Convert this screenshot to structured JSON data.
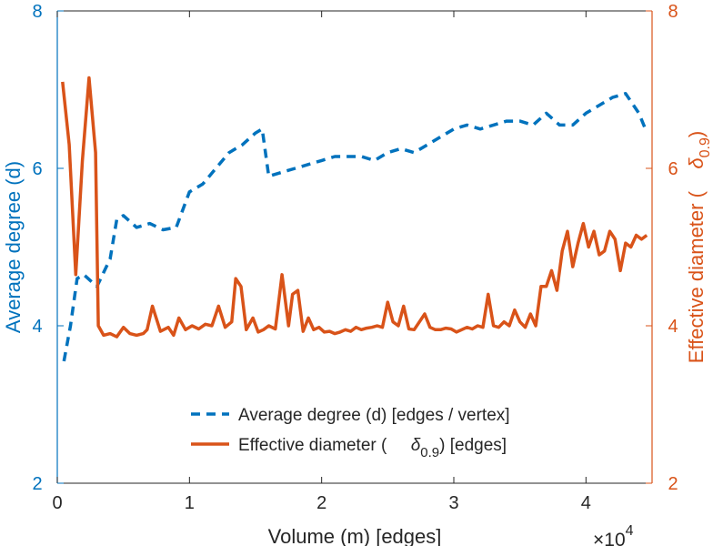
{
  "chart_data": {
    "type": "line",
    "xlabel": "Volume (m) [edges]",
    "x_exponent_base": "×10",
    "x_exponent_power": "4",
    "ylabel_left": "Average degree (d)",
    "ylabel_right_prefix": "Effective diameter (",
    "ylabel_right_symbol": "δ",
    "ylabel_right_subscript": "0.9",
    "ylabel_right_suffix": ")",
    "xlim": [
      0,
      4.5
    ],
    "xticks": [
      0,
      1,
      2,
      3,
      4
    ],
    "xtick_labels": [
      "0",
      "1",
      "2",
      "3",
      "4"
    ],
    "ylim_left": [
      2,
      8
    ],
    "yticks_left": [
      2,
      4,
      6,
      8
    ],
    "ytick_labels_left": [
      "2",
      "4",
      "6",
      "8"
    ],
    "ylim_right": [
      2,
      8
    ],
    "yticks_right": [
      2,
      4,
      6,
      8
    ],
    "ytick_labels_right": [
      "2",
      "4",
      "6",
      "8"
    ],
    "grid": false,
    "legend_position": "bottom-center",
    "colors": {
      "left": "#0072BD",
      "right": "#D95319",
      "axis": "#262626"
    },
    "series": [
      {
        "name": "Average degree (d) [edges / vertex]",
        "legend_prefix": "Average degree (d) [edges / vertex]",
        "axis": "left",
        "style": "dashed",
        "color": "#0072BD",
        "x": [
          0.05,
          0.1,
          0.15,
          0.2,
          0.3,
          0.4,
          0.45,
          0.5,
          0.6,
          0.7,
          0.8,
          0.9,
          1.0,
          1.1,
          1.2,
          1.3,
          1.4,
          1.5,
          1.55,
          1.6,
          1.7,
          1.8,
          1.9,
          2.0,
          2.1,
          2.2,
          2.3,
          2.4,
          2.5,
          2.6,
          2.7,
          2.8,
          2.9,
          3.0,
          3.1,
          3.2,
          3.3,
          3.4,
          3.5,
          3.6,
          3.7,
          3.8,
          3.9,
          4.0,
          4.1,
          4.2,
          4.3,
          4.4,
          4.45
        ],
        "values": [
          3.55,
          4.0,
          4.6,
          4.65,
          4.5,
          4.85,
          5.35,
          5.4,
          5.25,
          5.3,
          5.22,
          5.25,
          5.7,
          5.8,
          6.0,
          6.2,
          6.3,
          6.45,
          6.5,
          5.9,
          5.95,
          6.0,
          6.05,
          6.1,
          6.15,
          6.15,
          6.15,
          6.1,
          6.2,
          6.25,
          6.2,
          6.3,
          6.4,
          6.5,
          6.55,
          6.5,
          6.55,
          6.6,
          6.6,
          6.55,
          6.7,
          6.55,
          6.55,
          6.7,
          6.8,
          6.9,
          6.95,
          6.7,
          6.5
        ]
      },
      {
        "name": "Effective diameter (δ0.9) [edges]",
        "legend_prefix": "Effective diameter (",
        "legend_symbol": "δ",
        "legend_subscript": "0.9",
        "legend_suffix": ") [edges]",
        "axis": "right",
        "style": "solid",
        "color": "#D95319",
        "x": [
          0.04,
          0.09,
          0.14,
          0.19,
          0.24,
          0.29,
          0.31,
          0.35,
          0.4,
          0.45,
          0.5,
          0.55,
          0.6,
          0.65,
          0.68,
          0.72,
          0.78,
          0.84,
          0.88,
          0.92,
          0.97,
          1.02,
          1.07,
          1.12,
          1.17,
          1.22,
          1.27,
          1.32,
          1.35,
          1.39,
          1.43,
          1.48,
          1.52,
          1.56,
          1.6,
          1.65,
          1.7,
          1.75,
          1.78,
          1.82,
          1.86,
          1.9,
          1.94,
          1.98,
          2.02,
          2.06,
          2.1,
          2.14,
          2.18,
          2.22,
          2.26,
          2.3,
          2.34,
          2.38,
          2.42,
          2.46,
          2.5,
          2.54,
          2.58,
          2.62,
          2.66,
          2.7,
          2.74,
          2.78,
          2.82,
          2.86,
          2.9,
          2.94,
          2.98,
          3.02,
          3.06,
          3.1,
          3.14,
          3.18,
          3.22,
          3.26,
          3.3,
          3.34,
          3.38,
          3.42,
          3.46,
          3.5,
          3.54,
          3.58,
          3.62,
          3.66,
          3.7,
          3.74,
          3.78,
          3.82,
          3.86,
          3.9,
          3.94,
          3.98,
          4.02,
          4.06,
          4.1,
          4.14,
          4.18,
          4.22,
          4.26,
          4.3,
          4.34,
          4.38,
          4.42,
          4.46
        ],
        "values": [
          7.1,
          6.3,
          4.65,
          6.1,
          7.15,
          6.2,
          4.0,
          3.88,
          3.9,
          3.86,
          3.98,
          3.9,
          3.88,
          3.9,
          3.95,
          4.25,
          3.93,
          3.98,
          3.88,
          4.1,
          3.95,
          4.0,
          3.96,
          4.02,
          4.0,
          4.25,
          3.98,
          4.05,
          4.6,
          4.5,
          3.95,
          4.1,
          3.92,
          3.95,
          4.0,
          3.96,
          4.65,
          4.0,
          4.4,
          4.45,
          3.93,
          4.1,
          3.95,
          3.98,
          3.92,
          3.93,
          3.9,
          3.92,
          3.95,
          3.93,
          3.98,
          3.95,
          3.97,
          3.98,
          4.0,
          3.98,
          4.3,
          4.05,
          4.0,
          4.25,
          3.96,
          3.95,
          4.05,
          4.15,
          3.98,
          3.95,
          3.95,
          3.97,
          3.96,
          3.92,
          3.95,
          3.98,
          3.96,
          4.0,
          3.98,
          4.4,
          4.0,
          3.98,
          4.05,
          4.0,
          4.2,
          4.05,
          3.98,
          4.15,
          4.0,
          4.5,
          4.5,
          4.7,
          4.45,
          4.95,
          5.2,
          4.75,
          5.05,
          5.3,
          5.0,
          5.2,
          4.9,
          4.95,
          5.2,
          5.1,
          4.7,
          5.05,
          5.0,
          5.15,
          5.1,
          5.15
        ]
      }
    ]
  }
}
